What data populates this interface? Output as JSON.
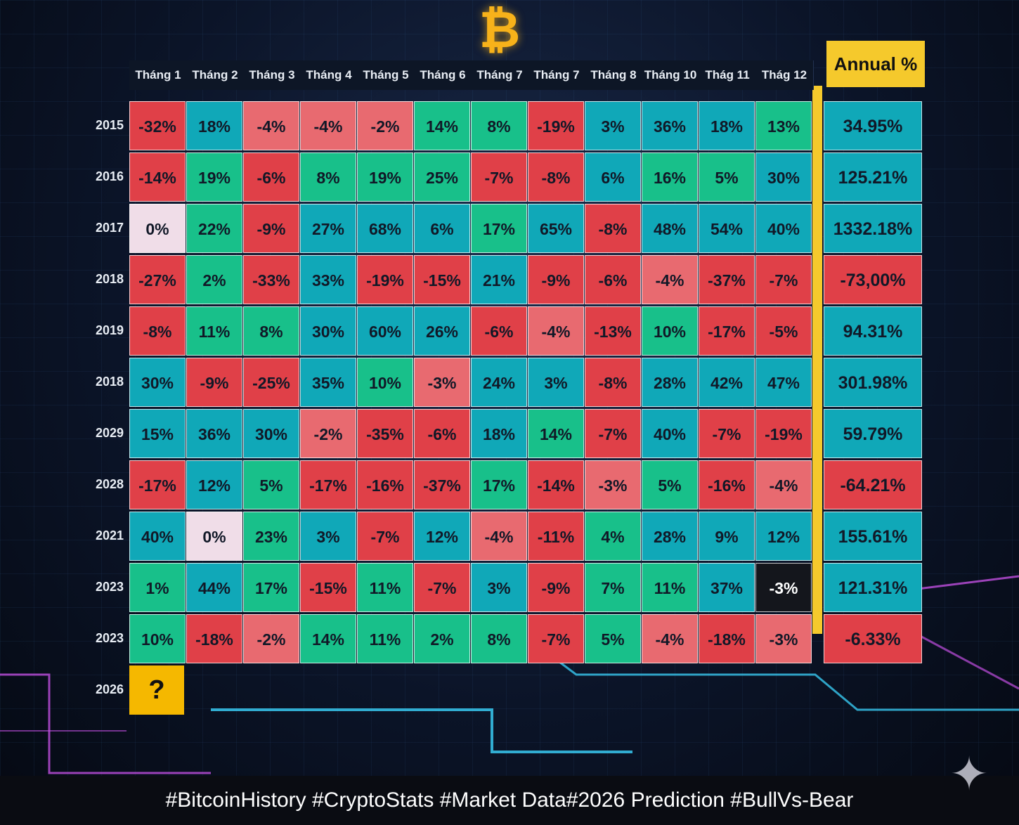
{
  "logo": {
    "icon": "bitcoin-icon",
    "glyph": "₿",
    "color": "#f7b21a"
  },
  "colors": {
    "positive": "#18c08a",
    "positive_alt": "#10a8b8",
    "negative": "#e04048",
    "negative_light": "#e86a70",
    "zero": "#f0dde8",
    "highlight": "#f5c92c",
    "dark": "#14161c"
  },
  "chart_data": {
    "type": "table",
    "columns": [
      "Tháng 1",
      "Tháng 2",
      "Tháng 3",
      "Tháng 4",
      "Tháng 5",
      "Tháng 6",
      "Tháng 7",
      "Tháng 7",
      "Tháng 8",
      "Tháng 10",
      "Thág 11",
      "Thág 12"
    ],
    "annual_header": "Annual %",
    "rows": [
      {
        "year": "2015",
        "values": [
          "-32%",
          "18%",
          "-4%",
          "-4%",
          "-2%",
          "14%",
          "8%",
          "-19%",
          "3%",
          "36%",
          "18%",
          "13%"
        ],
        "annual": "34.95%"
      },
      {
        "year": "2016",
        "values": [
          "-14%",
          "19%",
          "-6%",
          "8%",
          "19%",
          "25%",
          "-7%",
          "-8%",
          "6%",
          "16%",
          "5%",
          "30%"
        ],
        "annual": "125.21%"
      },
      {
        "year": "2017",
        "values": [
          "0%",
          "22%",
          "-9%",
          "27%",
          "68%",
          "6%",
          "17%",
          "65%",
          "-8%",
          "48%",
          "54%",
          "40%"
        ],
        "annual": "1332.18%"
      },
      {
        "year": "2018",
        "values": [
          "-27%",
          "2%",
          "-33%",
          "33%",
          "-19%",
          "-15%",
          "21%",
          "-9%",
          "-6%",
          "-4%",
          "-37%",
          "-7%"
        ],
        "annual": "-73,00%"
      },
      {
        "year": "2019",
        "values": [
          "-8%",
          "11%",
          "8%",
          "30%",
          "60%",
          "26%",
          "-6%",
          "-4%",
          "-13%",
          "10%",
          "-17%",
          "-5%"
        ],
        "annual": "94.31%"
      },
      {
        "year": "2018",
        "values": [
          "30%",
          "-9%",
          "-25%",
          "35%",
          "10%",
          "-3%",
          "24%",
          "3%",
          "-8%",
          "28%",
          "42%",
          "47%"
        ],
        "annual": "301.98%"
      },
      {
        "year": "2029",
        "values": [
          "15%",
          "36%",
          "30%",
          "-2%",
          "-35%",
          "-6%",
          "18%",
          "14%",
          "-7%",
          "40%",
          "-7%",
          "-19%"
        ],
        "annual": "59.79%"
      },
      {
        "year": "2028",
        "values": [
          "-17%",
          "12%",
          "5%",
          "-17%",
          "-16%",
          "-37%",
          "17%",
          "-14%",
          "-3%",
          "5%",
          "-16%",
          "-4%"
        ],
        "annual": "-64.21%"
      },
      {
        "year": "2021",
        "values": [
          "40%",
          "0%",
          "23%",
          "3%",
          "-7%",
          "12%",
          "-4%",
          "-11%",
          "4%",
          "28%",
          "9%",
          "12%"
        ],
        "annual": "155.61%"
      },
      {
        "year": "2023",
        "values": [
          "1%",
          "44%",
          "17%",
          "-15%",
          "11%",
          "-7%",
          "3%",
          "-9%",
          "7%",
          "11%",
          "37%",
          "-3%"
        ],
        "annual": "121.31%"
      },
      {
        "year": "2023",
        "values": [
          "10%",
          "-18%",
          "-2%",
          "14%",
          "11%",
          "2%",
          "8%",
          "-7%",
          "5%",
          "-4%",
          "-18%",
          "-3%"
        ],
        "annual": "-6.33%"
      },
      {
        "year": "2026",
        "values": [
          "?"
        ],
        "annual": ""
      }
    ]
  },
  "footer": {
    "hashtags": "#BitcoinHistory #CryptoStats #Market Data#2026 Prediction  #BullVs-Bear"
  }
}
